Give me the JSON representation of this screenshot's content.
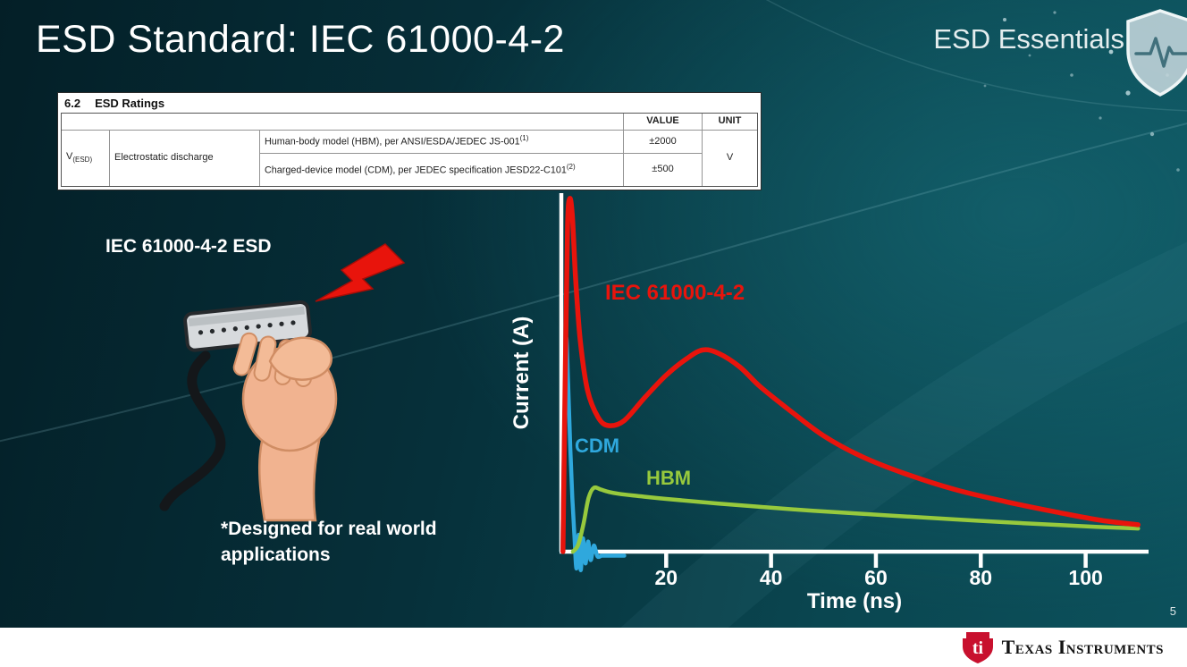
{
  "slide": {
    "title": "ESD Standard: IEC 61000-4-2",
    "series_brand": "ESD Essentials",
    "page_number": "5"
  },
  "datasheet_table": {
    "section_number": "6.2",
    "section_title": "ESD Ratings",
    "value_header": "VALUE",
    "unit_header": "UNIT",
    "param_symbol": "V",
    "param_symbol_sub": "(ESD)",
    "param_name": "Electrostatic discharge",
    "rows": [
      {
        "description": "Human-body model (HBM), per ANSI/ESDA/JEDEC JS-001",
        "footnote": "(1)",
        "value": "±2000"
      },
      {
        "description": "Charged-device model (CDM), per JEDEC specification JESD22-C101",
        "footnote": "(2)",
        "value": "±500"
      }
    ],
    "unit": "V"
  },
  "illustration": {
    "label": "IEC 61000-4-2 ESD",
    "caption": "*Designed for real world\napplications"
  },
  "footer": {
    "logo_text": "Texas Instruments",
    "logo_monogram": "ti"
  },
  "chart_data": {
    "type": "line",
    "title": "",
    "xlabel": "Time (ns)",
    "ylabel": "Current (A)",
    "x_ticks": [
      20,
      40,
      60,
      80,
      100
    ],
    "xlim": [
      0,
      112
    ],
    "ylim": [
      -0.08,
      1.08
    ],
    "grid": false,
    "legend_position": "inline-labels",
    "series": [
      {
        "name": "IEC 61000-4-2",
        "color": "#e8140c",
        "x": [
          0.3,
          0.8,
          1.2,
          1.6,
          2.1,
          2.7,
          3.6,
          5,
          7,
          9,
          12,
          16,
          20,
          24,
          27,
          30,
          34,
          38,
          44,
          50,
          57,
          65,
          75,
          85,
          95,
          103,
          110
        ],
        "y": [
          0,
          0.58,
          0.97,
          1.05,
          1.0,
          0.82,
          0.63,
          0.48,
          0.4,
          0.375,
          0.39,
          0.46,
          0.525,
          0.575,
          0.6,
          0.59,
          0.55,
          0.49,
          0.415,
          0.345,
          0.285,
          0.235,
          0.185,
          0.148,
          0.116,
          0.093,
          0.08
        ]
      },
      {
        "name": "CDM",
        "color": "#2fa8dd",
        "x": [
          0.2,
          0.5,
          0.9,
          1.3,
          1.7,
          2.1,
          2.5,
          2.9,
          3.3,
          3.7,
          4.1,
          4.6,
          5.1,
          5.6,
          6.2,
          6.9,
          7.7,
          8.6,
          10,
          12
        ],
        "y": [
          0,
          0.3,
          0.63,
          0.5,
          0.31,
          0.16,
          0.045,
          -0.05,
          0.05,
          -0.055,
          0.04,
          -0.035,
          0.03,
          -0.025,
          0.018,
          -0.014,
          -0.012,
          -0.012,
          -0.012,
          -0.012
        ]
      },
      {
        "name": "HBM",
        "color": "#97c93d",
        "x": [
          2.2,
          3.2,
          4.2,
          5.2,
          6.2,
          7.5,
          9,
          11,
          15,
          20,
          30,
          45,
          60,
          75,
          90,
          102,
          110
        ],
        "y": [
          0,
          0.02,
          0.08,
          0.16,
          0.19,
          0.185,
          0.178,
          0.172,
          0.165,
          0.157,
          0.143,
          0.125,
          0.11,
          0.096,
          0.083,
          0.074,
          0.069
        ]
      }
    ]
  }
}
